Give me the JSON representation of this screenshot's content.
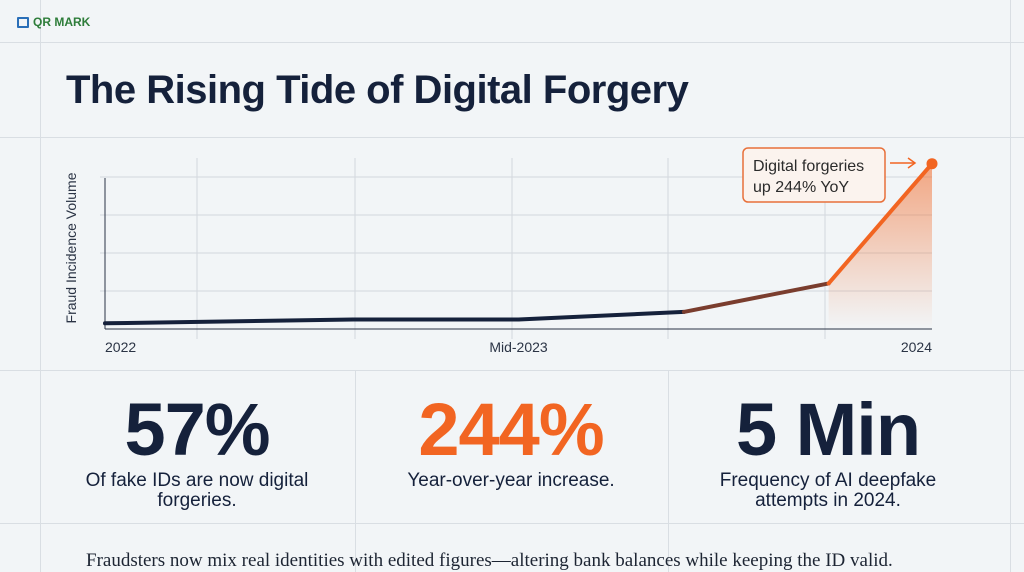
{
  "logo": {
    "text": "QR MARK"
  },
  "title": "The Rising Tide of Digital Forgery",
  "colors": {
    "navy": "#15213b",
    "orange": "#f26522",
    "background": "#f2f5f7",
    "grid": "#d9dee3"
  },
  "chart_data": {
    "type": "line",
    "title": "",
    "ylabel": "Fraud Incidence Volume",
    "xlabel": "",
    "x": [
      2022.0,
      2022.6,
      2023.0,
      2023.4,
      2023.75,
      2024.0
    ],
    "values": [
      3,
      5,
      5,
      9,
      24,
      87
    ],
    "xlim": [
      2022.0,
      2024.0
    ],
    "ylim": [
      0,
      90
    ],
    "x_tick_labels": [
      {
        "x": 2022.0,
        "label": "2022"
      },
      {
        "x": 2023.0,
        "label": "Mid-2023"
      },
      {
        "x": 2024.0,
        "label": "2024"
      }
    ],
    "y_tick_labels": [],
    "grid": true,
    "line_gradient": [
      "#15213b",
      "#f26522"
    ],
    "area_fill_under_last_segment": true,
    "annotation": {
      "text_line1": "Digital forgeries",
      "text_line2": "up 244% YoY",
      "target_x": 2024.0
    }
  },
  "stats": [
    {
      "value": "57%",
      "label_line1": "Of fake IDs are now digital",
      "label_line2": "forgeries.",
      "color": "#15213b"
    },
    {
      "value": "244%",
      "label_line1": "Year-over-year increase.",
      "label_line2": "",
      "color": "#f26522"
    },
    {
      "value": "5 Min",
      "label_line1": "Frequency of AI deepfake",
      "label_line2": "attempts in 2024.",
      "color": "#15213b"
    }
  ],
  "footer": "Fraudsters now mix real identities with edited figures—altering bank balances while keeping the ID valid."
}
